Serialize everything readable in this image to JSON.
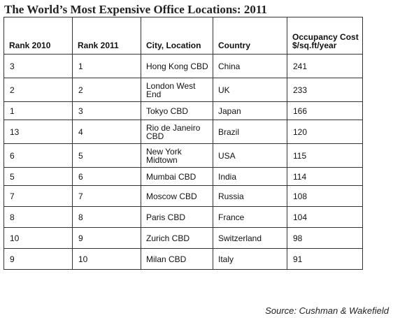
{
  "title": "The World’s Most Expensive Office Locations: 2011",
  "table": {
    "headers": [
      "Rank 2010",
      "Rank 2011",
      "City, Location",
      "Country",
      "Occupancy Cost $/sq.ft/year"
    ],
    "rows": [
      [
        "3",
        "1",
        "Hong Kong CBD",
        "China",
        "241"
      ],
      [
        "2",
        "2",
        "London West End",
        "UK",
        "233"
      ],
      [
        "1",
        "3",
        "Tokyo CBD",
        "Japan",
        "166"
      ],
      [
        "13",
        "4",
        "Rio de Janeiro CBD",
        "Brazil",
        "120"
      ],
      [
        "6",
        "5",
        "New York Midtown",
        "USA",
        "115"
      ],
      [
        "5",
        "6",
        "Mumbai CBD",
        "India",
        "114"
      ],
      [
        "7",
        "7",
        "Moscow CBD",
        "Russia",
        "108"
      ],
      [
        "8",
        "8",
        "Paris CBD",
        "France",
        "104"
      ],
      [
        "10",
        "9",
        "Zurich CBD",
        "Switzerland",
        "98"
      ],
      [
        "9",
        "10",
        "Milan CBD",
        "Italy",
        "91"
      ]
    ]
  },
  "source": "Source: Cushman & Wakefield"
}
